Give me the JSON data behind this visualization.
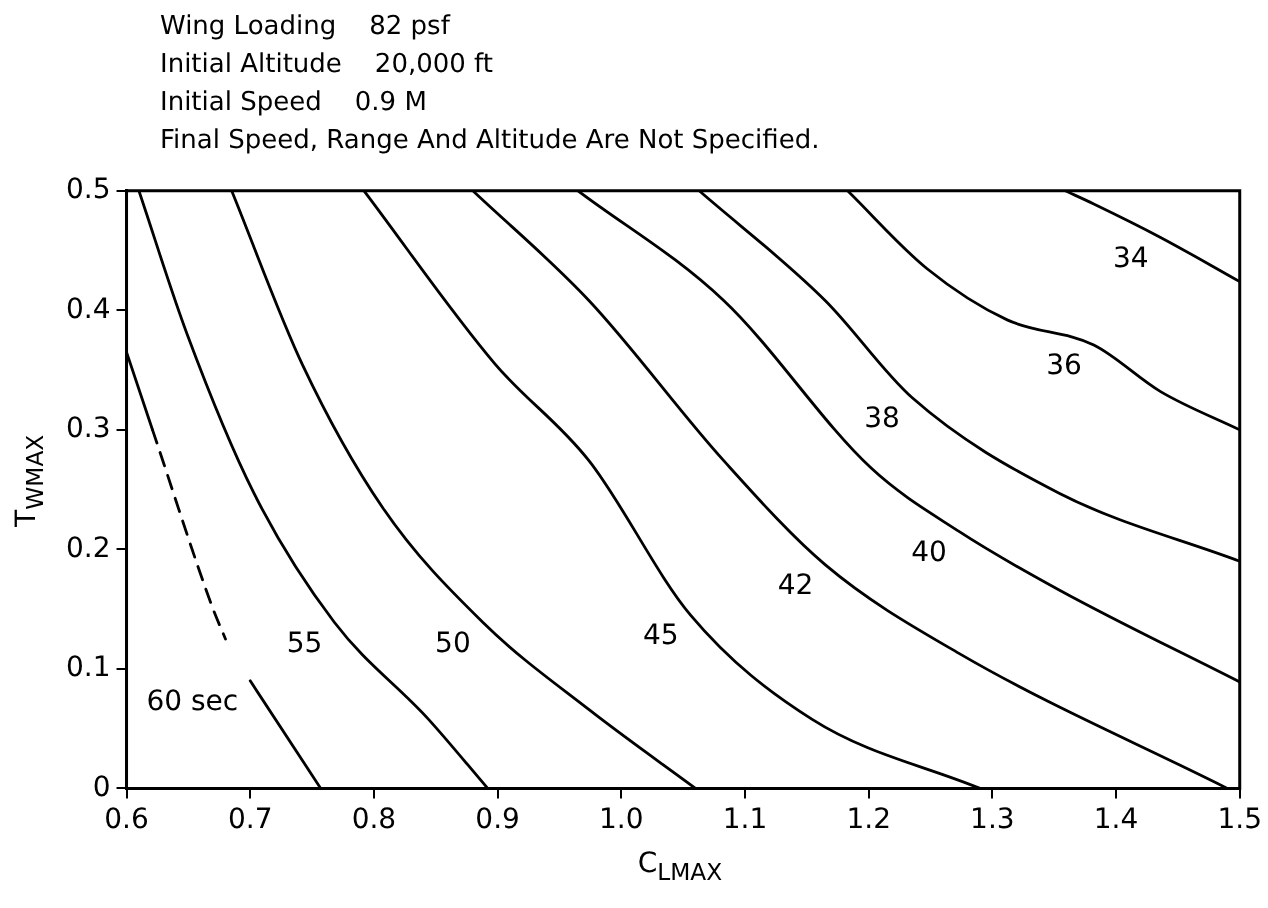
{
  "chart_data": {
    "type": "line",
    "xlabel": "C$_{LMAX}$",
    "ylabel": "T$_{WMAX}$",
    "xlim": [
      0.6,
      1.5
    ],
    "xticks": [
      0.6,
      0.7,
      0.8,
      0.9,
      {
        "value": 1.0,
        "label": "1.0"
      },
      1.1,
      1.2,
      1.3,
      1.4,
      1.5
    ],
    "ylim": [
      0,
      0.5
    ],
    "yticks": [
      0,
      0.1,
      0.2,
      0.3,
      0.4,
      0.5
    ],
    "grid": false,
    "legend": false,
    "marker": "none",
    "line_style": "solid",
    "series": [
      {
        "name": "60 sec",
        "color": "#000000",
        "x": [
          0.6,
          0.621,
          0.67,
          0.7,
          0.757
        ],
        "values": [
          0.365,
          0.3,
          null,
          0.09,
          0
        ]
      },
      {
        "color": "#000000",
        "line_style": "dashed",
        "x": [
          0.621,
          0.67,
          0.68
        ],
        "values": [
          0.3,
          0.15,
          0.125
        ]
      },
      {
        "name": "55",
        "color": "#000000",
        "x": [
          0.61,
          0.649,
          0.703,
          0.768,
          0.844,
          0.892
        ],
        "values": [
          0.5,
          0.38,
          0.247,
          0.139,
          0.058,
          0
        ]
      },
      {
        "name": "50",
        "color": "#000000",
        "x": [
          0.685,
          0.742,
          0.807,
          0.888,
          0.975,
          1.06
        ],
        "values": [
          0.5,
          0.355,
          0.235,
          0.139,
          0.065,
          0
        ]
      },
      {
        "name": "45",
        "color": "#000000",
        "x": [
          0.792,
          0.898,
          0.974,
          1.056,
          1.154,
          1.29
        ],
        "values": [
          0.5,
          0.355,
          0.274,
          0.145,
          0.058,
          0
        ]
      },
      {
        "name": "42",
        "color": "#000000",
        "x": [
          0.88,
          0.974,
          1.083,
          1.165,
          1.273,
          1.49
        ],
        "values": [
          0.5,
          0.408,
          0.274,
          0.187,
          0.113,
          0
        ]
      },
      {
        "name": "40",
        "color": "#000000",
        "x": [
          0.965,
          1.083,
          1.202,
          1.273,
          1.354,
          1.5
        ],
        "values": [
          0.5,
          0.408,
          0.268,
          0.215,
          0.166,
          0.089
        ]
      },
      {
        "name": "38",
        "color": "#000000",
        "x": [
          1.063,
          1.165,
          1.235,
          1.354,
          1.5
        ],
        "values": [
          0.5,
          0.408,
          0.327,
          0.247,
          0.19
        ]
      },
      {
        "name": "36",
        "color": "#000000",
        "x": [
          1.183,
          1.247,
          1.312,
          1.382,
          1.436,
          1.5
        ],
        "values": [
          0.5,
          0.435,
          0.392,
          0.371,
          0.332,
          0.3
        ]
      },
      {
        "name": "34",
        "color": "#000000",
        "x": [
          1.359,
          1.382,
          1.436,
          1.5
        ],
        "values": [
          0.5,
          0.489,
          0.461,
          0.424
        ]
      }
    ],
    "annotations": [
      "Wing Loading    82 psf",
      "Initial Altitude    20,000 ft",
      "Initial Speed    0.9 M",
      "Final Speed, Range And Altitude Are Not Specified."
    ]
  }
}
